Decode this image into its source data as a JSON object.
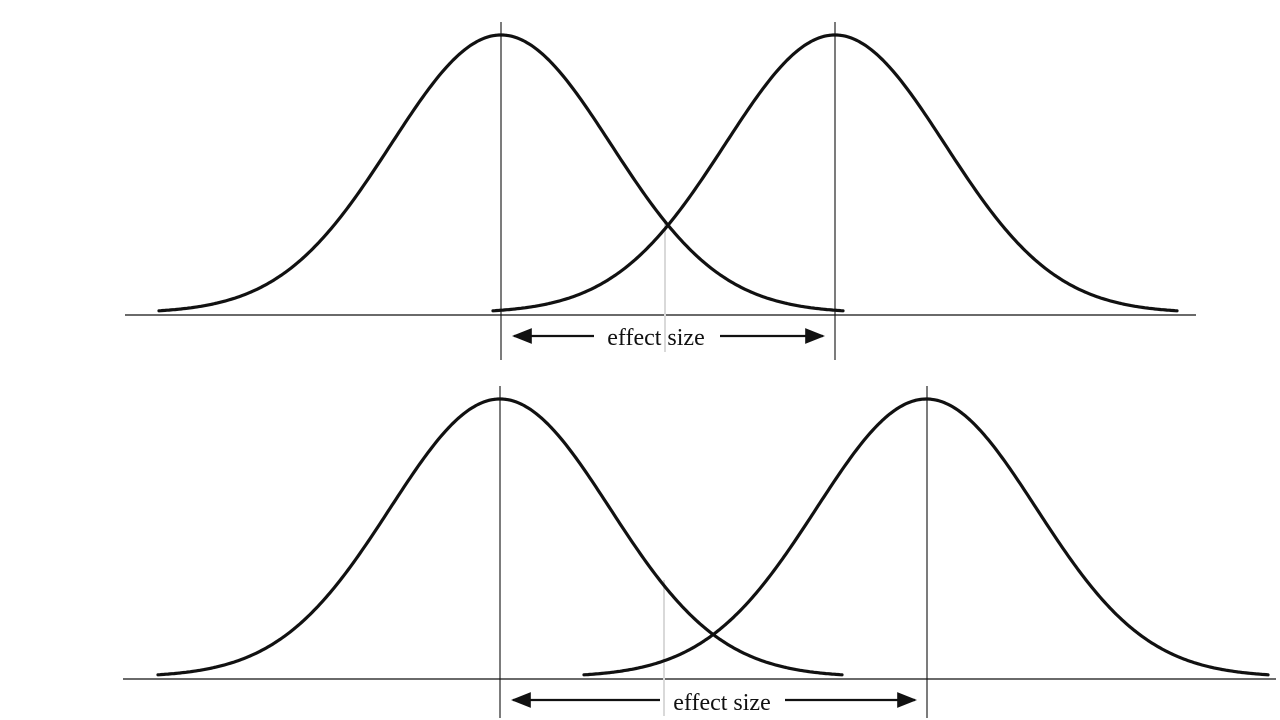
{
  "panels": [
    {
      "id": "top",
      "label": "effect size",
      "distributions": [
        {
          "name": "left-distribution",
          "mean": 0
        },
        {
          "name": "right-distribution",
          "mean": 1
        }
      ]
    },
    {
      "id": "bottom",
      "label": "effect size",
      "distributions": [
        {
          "name": "left-distribution",
          "mean": 0
        },
        {
          "name": "right-distribution",
          "mean": 1.3
        }
      ]
    }
  ],
  "colors": {
    "curve": "#111111",
    "guide": "#d9d9d9",
    "background": "#ffffff"
  }
}
